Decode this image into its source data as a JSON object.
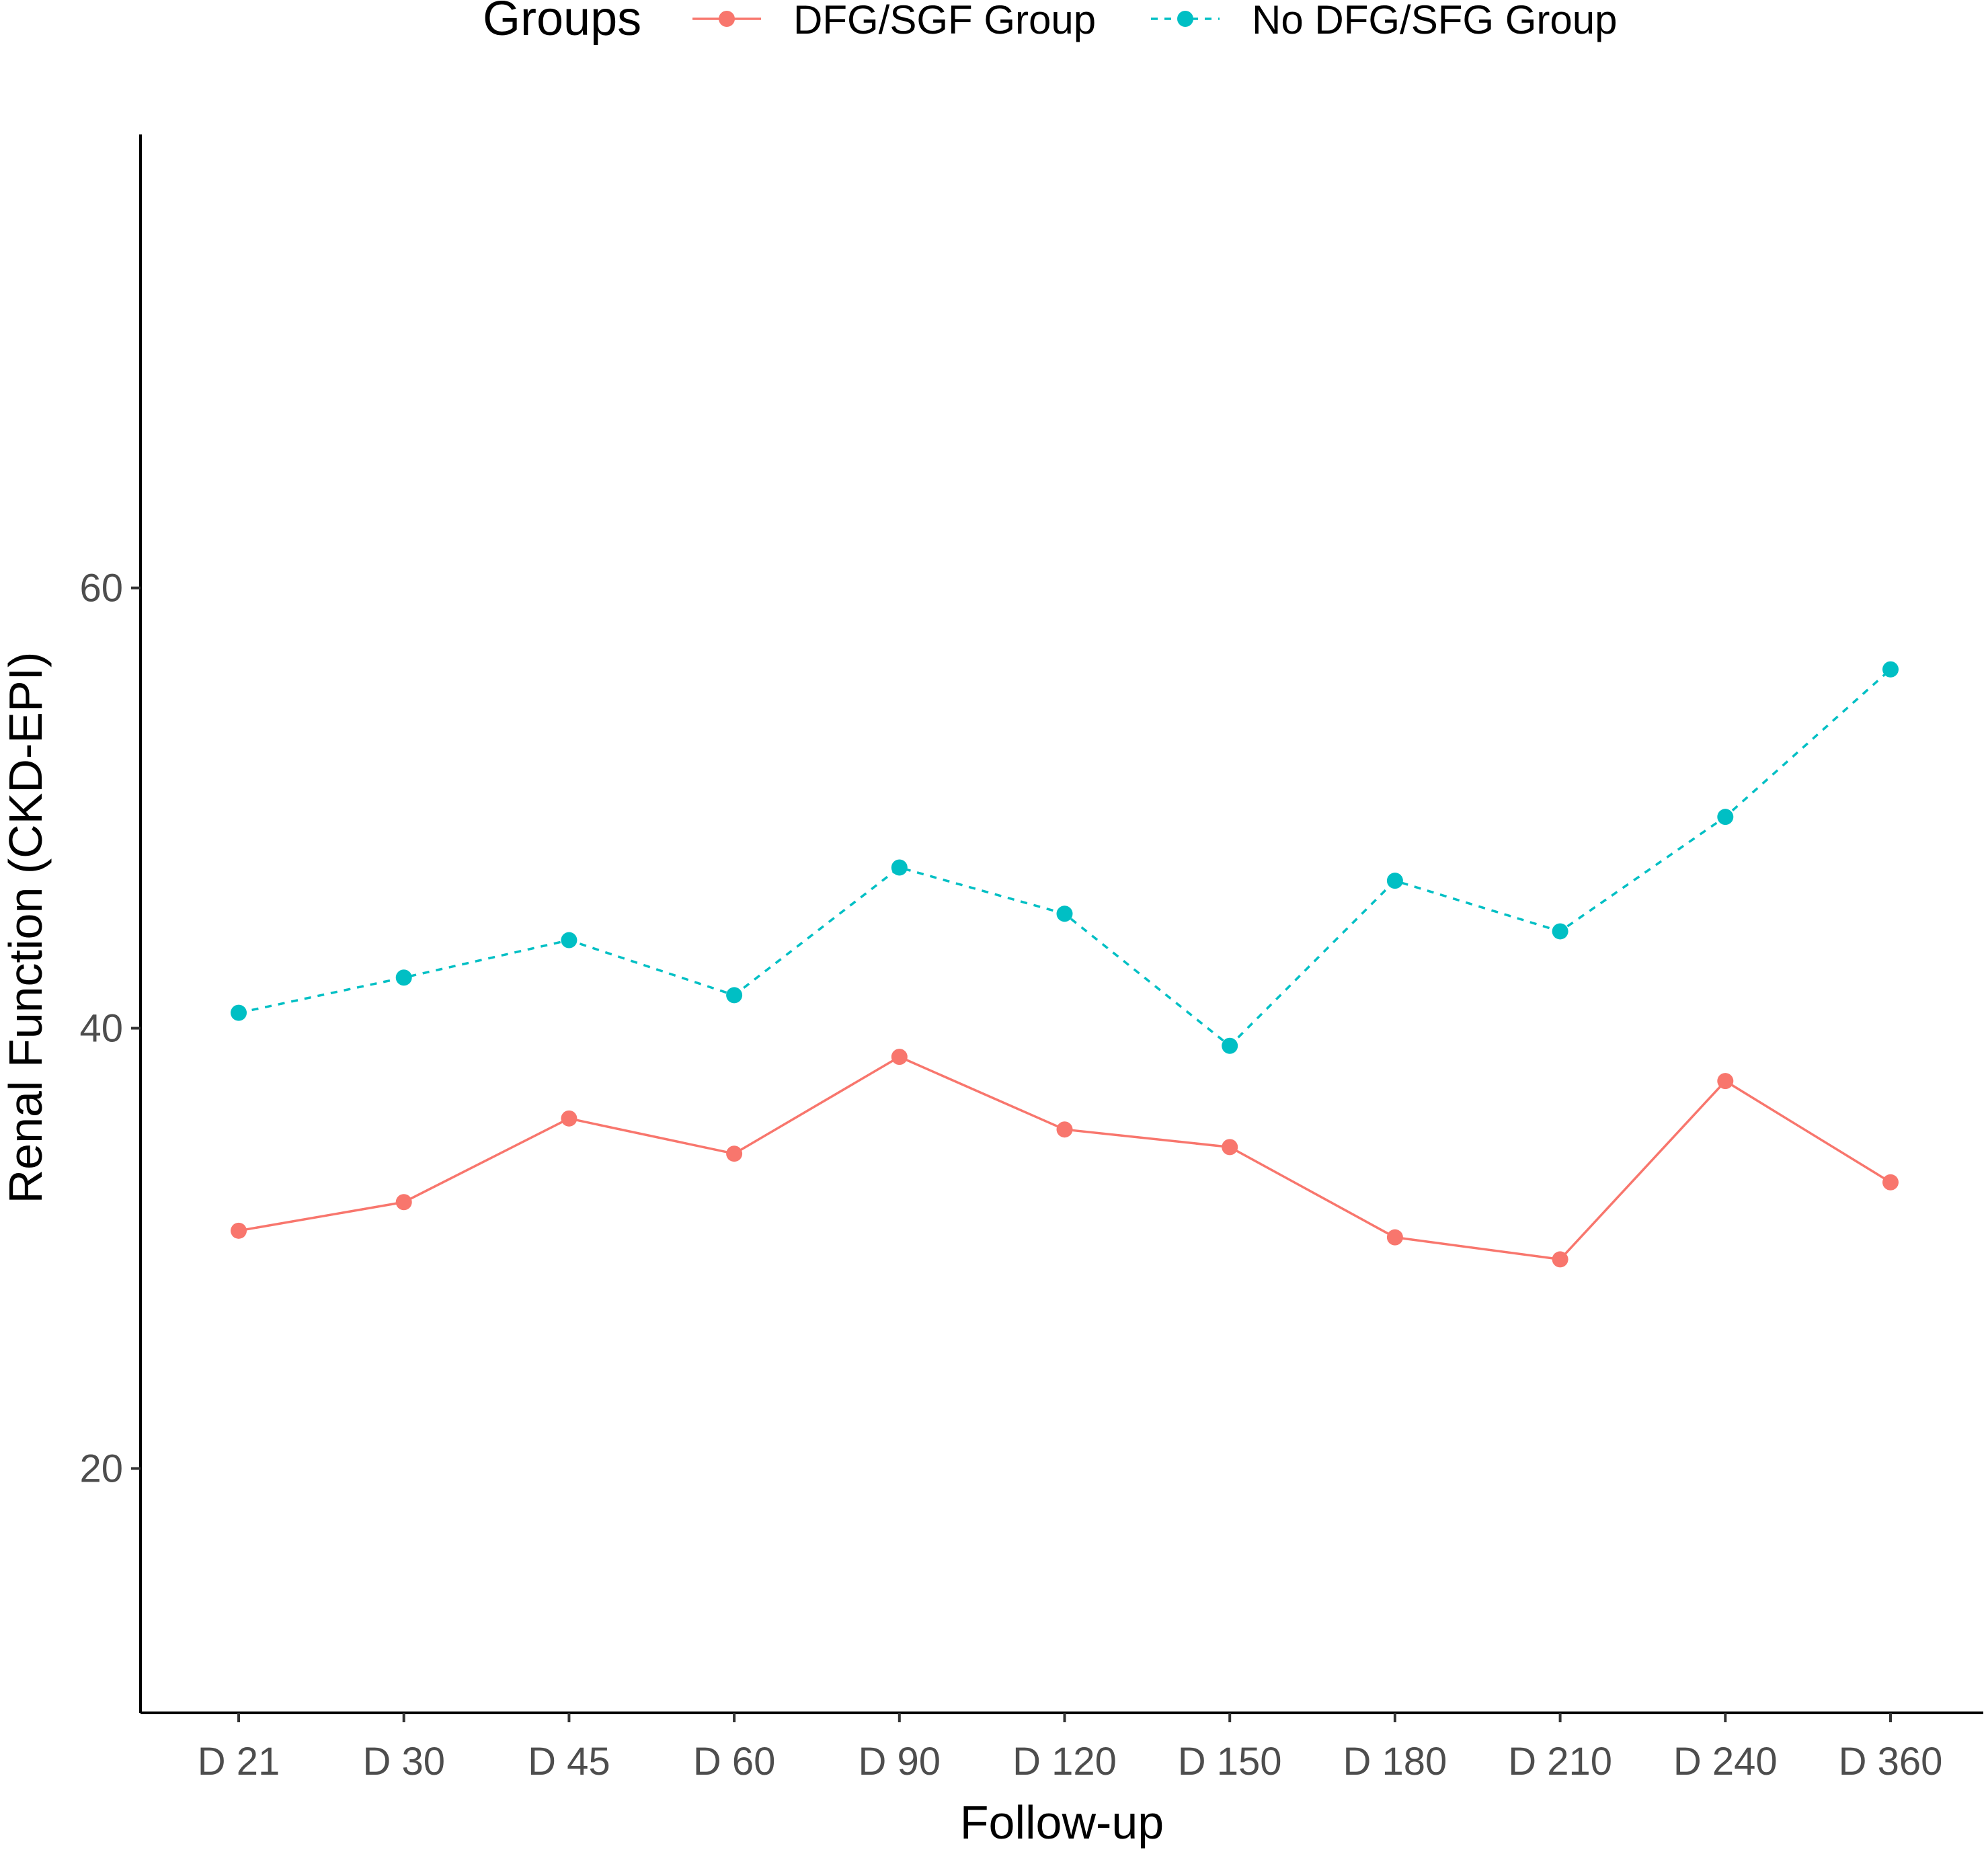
{
  "chart_data": {
    "type": "line",
    "xlabel": "Follow-up",
    "ylabel": "Renal Function (CKD-EPI)",
    "ylim": [
      8.9,
      80.6
    ],
    "yticks": [
      20,
      40,
      60
    ],
    "grid": false,
    "legend": {
      "title": "Groups",
      "placement": "top"
    },
    "categories": [
      "D 21",
      "D 30",
      "D 45",
      "D 60",
      "D 90",
      "D 120",
      "D 150",
      "D 180",
      "D 210",
      "D 240",
      "D 360"
    ],
    "series": [
      {
        "name": "DFG/SGF Group",
        "color": "#F8766D",
        "line_style": "solid",
        "values": [
          30.8,
          32.1,
          35.9,
          34.3,
          38.7,
          35.4,
          34.6,
          30.5,
          29.5,
          37.6,
          33.0
        ]
      },
      {
        "name": "No DFG/SFG Group",
        "color": "#00BFC4",
        "line_style": "dashed",
        "values": [
          40.7,
          42.3,
          44.0,
          41.5,
          47.3,
          45.2,
          39.2,
          46.7,
          44.4,
          49.6,
          56.3
        ]
      }
    ]
  }
}
